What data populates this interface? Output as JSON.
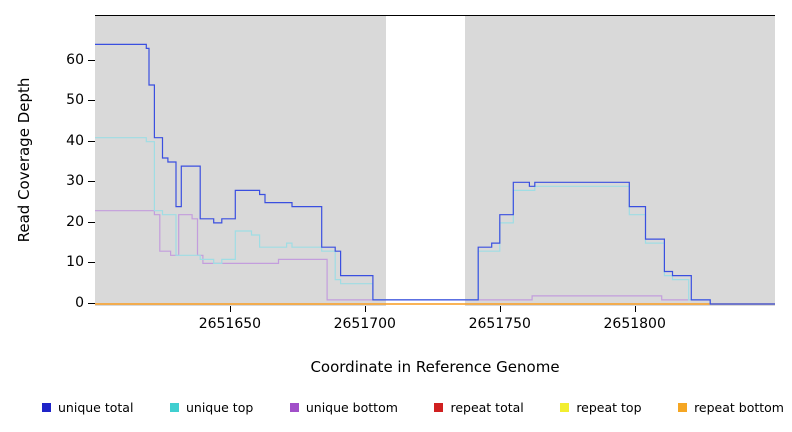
{
  "chart_data": {
    "type": "line",
    "subtype": "step",
    "title": "",
    "xlabel": "Coordinate in Reference Genome",
    "ylabel": "Read Coverage Depth",
    "xlim": [
      2651600,
      2651852
    ],
    "ylim": [
      -0.5,
      71
    ],
    "x_ticks": [
      2651650,
      2651700,
      2651750,
      2651800
    ],
    "y_ticks": [
      0,
      10,
      20,
      30,
      40,
      50,
      60
    ],
    "grid": false,
    "plot_bg": "#d9d9d9",
    "gap_band": {
      "x_start": 2651708,
      "x_end": 2651737,
      "color": "#ffffff"
    },
    "series": [
      {
        "name": "repeat total",
        "line_color": "#cc2222",
        "points": [
          [
            2651600,
            0
          ]
        ]
      },
      {
        "name": "repeat top",
        "line_color": "#eeee44",
        "points": [
          [
            2651600,
            0
          ]
        ]
      },
      {
        "name": "repeat bottom",
        "line_color": "#ffa428",
        "points": [
          [
            2651600,
            0
          ]
        ]
      },
      {
        "name": "unique bottom",
        "line_color": "#c39ddd",
        "points": [
          [
            2651600,
            23
          ],
          [
            2651622,
            22
          ],
          [
            2651624,
            13
          ],
          [
            2651628,
            12
          ],
          [
            2651631,
            22
          ],
          [
            2651636,
            21
          ],
          [
            2651638,
            12
          ],
          [
            2651640,
            10
          ],
          [
            2651668,
            11
          ],
          [
            2651686,
            1
          ],
          [
            2651762,
            2
          ],
          [
            2651810,
            1
          ],
          [
            2651828,
            0
          ]
        ]
      },
      {
        "name": "unique top",
        "line_color": "#9fdde4",
        "points": [
          [
            2651600,
            41
          ],
          [
            2651619,
            40
          ],
          [
            2651622,
            23
          ],
          [
            2651625,
            22
          ],
          [
            2651630,
            12
          ],
          [
            2651639,
            11
          ],
          [
            2651644,
            10
          ],
          [
            2651647,
            11
          ],
          [
            2651652,
            18
          ],
          [
            2651658,
            17
          ],
          [
            2651661,
            14
          ],
          [
            2651671,
            15
          ],
          [
            2651673,
            14
          ],
          [
            2651684,
            13
          ],
          [
            2651689,
            6
          ],
          [
            2651691,
            5
          ],
          [
            2651703,
            1
          ],
          [
            2651740,
            1
          ],
          [
            2651742,
            13
          ],
          [
            2651750,
            20
          ],
          [
            2651755,
            28
          ],
          [
            2651763,
            29
          ],
          [
            2651798,
            22
          ],
          [
            2651804,
            15
          ],
          [
            2651811,
            7
          ],
          [
            2651814,
            6
          ],
          [
            2651820,
            1
          ],
          [
            2651828,
            0
          ]
        ]
      },
      {
        "name": "unique total",
        "line_color": "#3a4fe0",
        "points": [
          [
            2651600,
            64
          ],
          [
            2651619,
            63
          ],
          [
            2651620,
            54
          ],
          [
            2651622,
            41
          ],
          [
            2651625,
            36
          ],
          [
            2651627,
            35
          ],
          [
            2651630,
            24
          ],
          [
            2651632,
            34
          ],
          [
            2651639,
            21
          ],
          [
            2651644,
            20
          ],
          [
            2651647,
            21
          ],
          [
            2651652,
            28
          ],
          [
            2651661,
            27
          ],
          [
            2651663,
            25
          ],
          [
            2651671,
            25
          ],
          [
            2651673,
            24
          ],
          [
            2651684,
            14
          ],
          [
            2651689,
            13
          ],
          [
            2651691,
            7
          ],
          [
            2651703,
            1
          ],
          [
            2651740,
            1
          ],
          [
            2651742,
            14
          ],
          [
            2651747,
            15
          ],
          [
            2651750,
            22
          ],
          [
            2651755,
            30
          ],
          [
            2651761,
            29
          ],
          [
            2651763,
            30
          ],
          [
            2651798,
            24
          ],
          [
            2651804,
            16
          ],
          [
            2651811,
            8
          ],
          [
            2651814,
            7
          ],
          [
            2651821,
            1
          ],
          [
            2651828,
            0
          ]
        ]
      }
    ],
    "legend": {
      "position": "bottom",
      "items": [
        {
          "label": "unique total",
          "color": "#1f24c8"
        },
        {
          "label": "unique top",
          "color": "#40cfd0"
        },
        {
          "label": "unique bottom",
          "color": "#a14fc9"
        },
        {
          "label": "repeat total",
          "color": "#d02020"
        },
        {
          "label": "repeat top",
          "color": "#f2ee30"
        },
        {
          "label": "repeat bottom",
          "color": "#f5a623"
        }
      ]
    }
  }
}
